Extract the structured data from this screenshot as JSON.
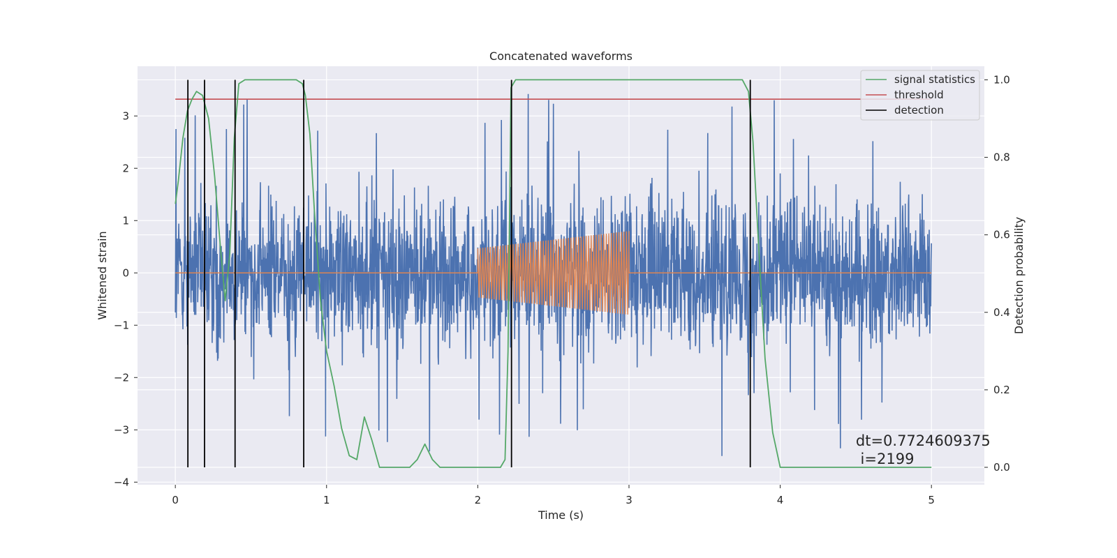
{
  "chart_data": {
    "type": "line",
    "title": "Concatenated waveforms",
    "xlabel": "Time (s)",
    "ylabel": "Whitened strain",
    "y2label": "Detection probability",
    "xlim": [
      -0.25,
      5.35
    ],
    "ylim": [
      -4.05,
      3.95
    ],
    "y2lim": [
      -0.045,
      1.035
    ],
    "x_ticks": [
      0,
      1,
      2,
      3,
      4,
      5
    ],
    "y_ticks": [
      -4,
      -3,
      -2,
      -1,
      0,
      1,
      2,
      3
    ],
    "y2_ticks": [
      0.0,
      0.2,
      0.4,
      0.6,
      0.8,
      1.0
    ],
    "x_tick_labels": [
      "0",
      "1",
      "2",
      "3",
      "4",
      "5"
    ],
    "y_tick_labels": [
      "−4",
      "−3",
      "−2",
      "−1",
      "0",
      "1",
      "2",
      "3"
    ],
    "y2_tick_labels": [
      "0.0",
      "0.2",
      "0.4",
      "0.6",
      "0.8",
      "1.0"
    ],
    "grid": true,
    "legend_position": "top-right",
    "colors": {
      "noise": "#4c72b0",
      "waveform": "#dd8452",
      "signal_statistics": "#55a868",
      "threshold": "#c44e52",
      "detection": "#000000",
      "plot_background": "#eaeaf2",
      "grid": "#ffffff"
    },
    "series": [
      {
        "name": "signal statistics",
        "axis": "right",
        "x": [
          0,
          0.02,
          0.05,
          0.08,
          0.11,
          0.14,
          0.18,
          0.22,
          0.26,
          0.3,
          0.33,
          0.36,
          0.39,
          0.42,
          0.46,
          0.55,
          0.7,
          0.8,
          0.84,
          0.86,
          0.89,
          0.92,
          0.96,
          1.0,
          1.05,
          1.1,
          1.15,
          1.2,
          1.25,
          1.3,
          1.35,
          1.4,
          1.5,
          1.55,
          1.6,
          1.65,
          1.7,
          1.75,
          1.8,
          2.0,
          2.15,
          2.18,
          2.2,
          2.22,
          2.25,
          2.3,
          2.5,
          3.0,
          3.5,
          3.75,
          3.79,
          3.82,
          3.86,
          3.9,
          3.95,
          4.0,
          4.2,
          5.0
        ],
        "values": [
          0.68,
          0.74,
          0.85,
          0.92,
          0.95,
          0.97,
          0.96,
          0.9,
          0.75,
          0.56,
          0.43,
          0.55,
          0.85,
          0.99,
          1.0,
          1.0,
          1.0,
          1.0,
          0.99,
          0.96,
          0.86,
          0.66,
          0.43,
          0.3,
          0.21,
          0.1,
          0.03,
          0.02,
          0.13,
          0.07,
          0.0,
          0.0,
          0.0,
          0.0,
          0.02,
          0.06,
          0.02,
          0.0,
          0.0,
          0.0,
          0.0,
          0.02,
          0.3,
          0.98,
          1.0,
          1.0,
          1.0,
          1.0,
          1.0,
          1.0,
          0.97,
          0.84,
          0.55,
          0.28,
          0.09,
          0.0,
          0.0,
          0.0
        ]
      },
      {
        "name": "threshold",
        "axis": "right",
        "x": [
          0,
          5.0
        ],
        "values": [
          0.95,
          0.95
        ]
      },
      {
        "name": "detection",
        "axis": "right",
        "type": "vlines",
        "x": [
          0.083,
          0.193,
          0.395,
          0.849,
          2.223,
          3.802
        ],
        "ymin": 0.0,
        "ymax": 1.0
      },
      {
        "name": "",
        "axis": "left",
        "kind": "noise",
        "x_range": [
          0,
          5.0
        ],
        "band": [
          -1.0,
          1.0
        ],
        "peak_max": [
          3.6,
          3.6
        ],
        "peak_min": [
          -3.7,
          -3.7
        ]
      },
      {
        "name": "",
        "axis": "left",
        "kind": "chirp",
        "x": [
          0,
          2.0,
          2.0,
          3.0,
          3.0,
          5.0
        ],
        "amplitude_at_start": 0.47,
        "amplitude_at_end": 0.8,
        "baseline": 0.0
      }
    ],
    "annotations": [
      {
        "text": "dt=0.7724609375",
        "x": 4.5,
        "y": -3.3
      },
      {
        "text": " i=2199",
        "x": 4.5,
        "y": -3.65
      }
    ]
  }
}
